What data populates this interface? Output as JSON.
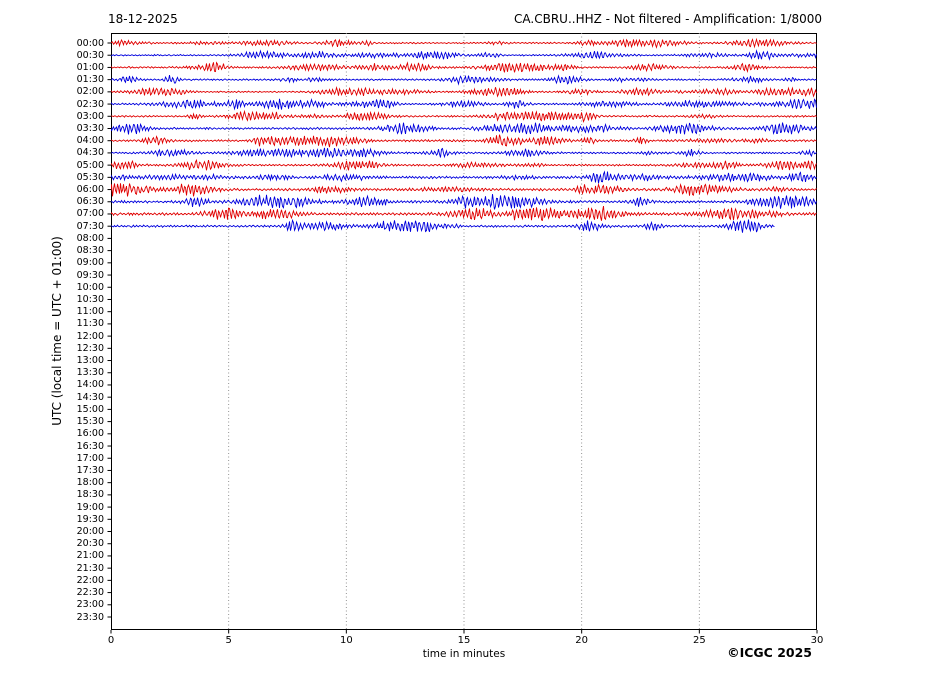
{
  "header": {
    "date": "18-12-2025",
    "title": "CA.CBRU..HHZ - Not filtered - Amplification: 1/8000"
  },
  "axes": {
    "ylabel": "UTC (local time = UTC + 01:00)",
    "xlabel": "time in minutes",
    "x_tick_labels": [
      "0",
      "5",
      "10",
      "15",
      "20",
      "25",
      "30"
    ]
  },
  "footer": {
    "copyright": "©ICGC 2025"
  },
  "chart_data": {
    "type": "line",
    "subtype": "helicorder-dayplot",
    "title": "CA.CBRU..HHZ - Not filtered - Amplification: 1/8000",
    "date": "18-12-2025",
    "station": "CA.CBRU..HHZ",
    "filter": "Not filtered",
    "amplification": "1/8000",
    "xlabel": "time in minutes",
    "ylabel": "UTC (local time = UTC + 01:00)",
    "xlim": [
      0,
      30
    ],
    "x_tick_values": [
      0,
      5,
      10,
      15,
      20,
      25,
      30
    ],
    "minutes_per_row": 30,
    "grid": "vertical-dotted",
    "grid_color": "#888888",
    "trace_colors": {
      "red": "#e00000",
      "blue": "#0000dd"
    },
    "rows": [
      {
        "label": "00:00",
        "has_data": true,
        "color": "#e00000",
        "amplitude": 1.6,
        "end_minute": 30
      },
      {
        "label": "00:30",
        "has_data": true,
        "color": "#0000dd",
        "amplitude": 1.5,
        "end_minute": 30
      },
      {
        "label": "01:00",
        "has_data": true,
        "color": "#e00000",
        "amplitude": 1.9,
        "end_minute": 30
      },
      {
        "label": "01:30",
        "has_data": true,
        "color": "#0000dd",
        "amplitude": 1.8,
        "end_minute": 30
      },
      {
        "label": "02:00",
        "has_data": true,
        "color": "#e00000",
        "amplitude": 1.6,
        "end_minute": 30
      },
      {
        "label": "02:30",
        "has_data": true,
        "color": "#0000dd",
        "amplitude": 2.0,
        "end_minute": 30
      },
      {
        "label": "03:00",
        "has_data": true,
        "color": "#e00000",
        "amplitude": 1.9,
        "end_minute": 30
      },
      {
        "label": "03:30",
        "has_data": true,
        "color": "#0000dd",
        "amplitude": 2.3,
        "end_minute": 30
      },
      {
        "label": "04:00",
        "has_data": true,
        "color": "#e00000",
        "amplitude": 2.2,
        "end_minute": 30
      },
      {
        "label": "04:30",
        "has_data": true,
        "color": "#0000dd",
        "amplitude": 1.9,
        "end_minute": 30
      },
      {
        "label": "05:00",
        "has_data": true,
        "color": "#e00000",
        "amplitude": 1.8,
        "end_minute": 30
      },
      {
        "label": "05:30",
        "has_data": true,
        "color": "#0000dd",
        "amplitude": 2.6,
        "end_minute": 30
      },
      {
        "label": "06:00",
        "has_data": true,
        "color": "#e00000",
        "amplitude": 2.6,
        "end_minute": 30
      },
      {
        "label": "06:30",
        "has_data": true,
        "color": "#0000dd",
        "amplitude": 2.6,
        "end_minute": 30
      },
      {
        "label": "07:00",
        "has_data": true,
        "color": "#e00000",
        "amplitude": 3.0,
        "end_minute": 30
      },
      {
        "label": "07:30",
        "has_data": true,
        "color": "#0000dd",
        "amplitude": 2.4,
        "end_minute": 28.2
      },
      {
        "label": "08:00",
        "has_data": false
      },
      {
        "label": "08:30",
        "has_data": false
      },
      {
        "label": "09:00",
        "has_data": false
      },
      {
        "label": "09:30",
        "has_data": false
      },
      {
        "label": "10:00",
        "has_data": false
      },
      {
        "label": "10:30",
        "has_data": false
      },
      {
        "label": "11:00",
        "has_data": false
      },
      {
        "label": "11:30",
        "has_data": false
      },
      {
        "label": "12:00",
        "has_data": false
      },
      {
        "label": "12:30",
        "has_data": false
      },
      {
        "label": "13:00",
        "has_data": false
      },
      {
        "label": "13:30",
        "has_data": false
      },
      {
        "label": "14:00",
        "has_data": false
      },
      {
        "label": "14:30",
        "has_data": false
      },
      {
        "label": "15:00",
        "has_data": false
      },
      {
        "label": "15:30",
        "has_data": false
      },
      {
        "label": "16:00",
        "has_data": false
      },
      {
        "label": "16:30",
        "has_data": false
      },
      {
        "label": "17:00",
        "has_data": false
      },
      {
        "label": "17:30",
        "has_data": false
      },
      {
        "label": "18:00",
        "has_data": false
      },
      {
        "label": "18:30",
        "has_data": false
      },
      {
        "label": "19:00",
        "has_data": false
      },
      {
        "label": "19:30",
        "has_data": false
      },
      {
        "label": "20:00",
        "has_data": false
      },
      {
        "label": "20:30",
        "has_data": false
      },
      {
        "label": "21:00",
        "has_data": false
      },
      {
        "label": "21:30",
        "has_data": false
      },
      {
        "label": "22:00",
        "has_data": false
      },
      {
        "label": "22:30",
        "has_data": false
      },
      {
        "label": "23:00",
        "has_data": false
      },
      {
        "label": "23:30",
        "has_data": false
      }
    ]
  }
}
